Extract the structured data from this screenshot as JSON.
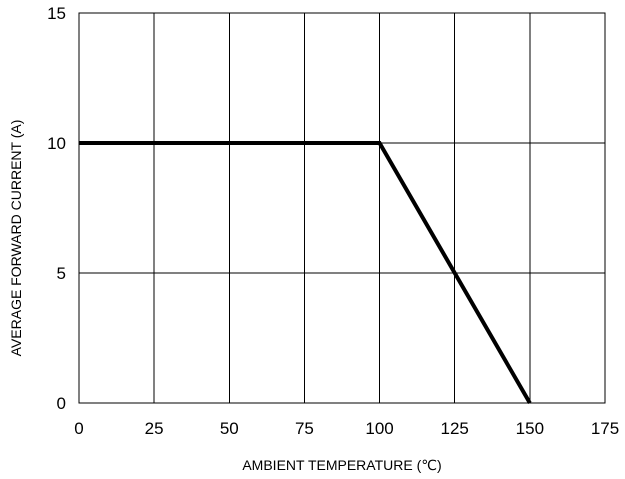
{
  "chart_data": {
    "type": "line",
    "title": "",
    "xlabel": "AMBIENT TEMPERATURE (℃)",
    "ylabel": "AVERAGE FORWARD CURRENT (A)",
    "xlim": [
      0,
      175
    ],
    "ylim": [
      0,
      15
    ],
    "x_ticks": [
      0,
      25,
      50,
      75,
      100,
      125,
      150,
      175
    ],
    "y_ticks": [
      0,
      5,
      10,
      15
    ],
    "x_tick_labels": [
      "0",
      "25",
      "50",
      "75",
      "100",
      "125",
      "150",
      "175"
    ],
    "y_tick_labels": [
      "0",
      "5",
      "10",
      "15"
    ],
    "grid": true,
    "legend": "none",
    "series": [
      {
        "x": [
          0,
          100,
          150
        ],
        "y": [
          10,
          10,
          0
        ],
        "color": "#000000"
      }
    ]
  }
}
